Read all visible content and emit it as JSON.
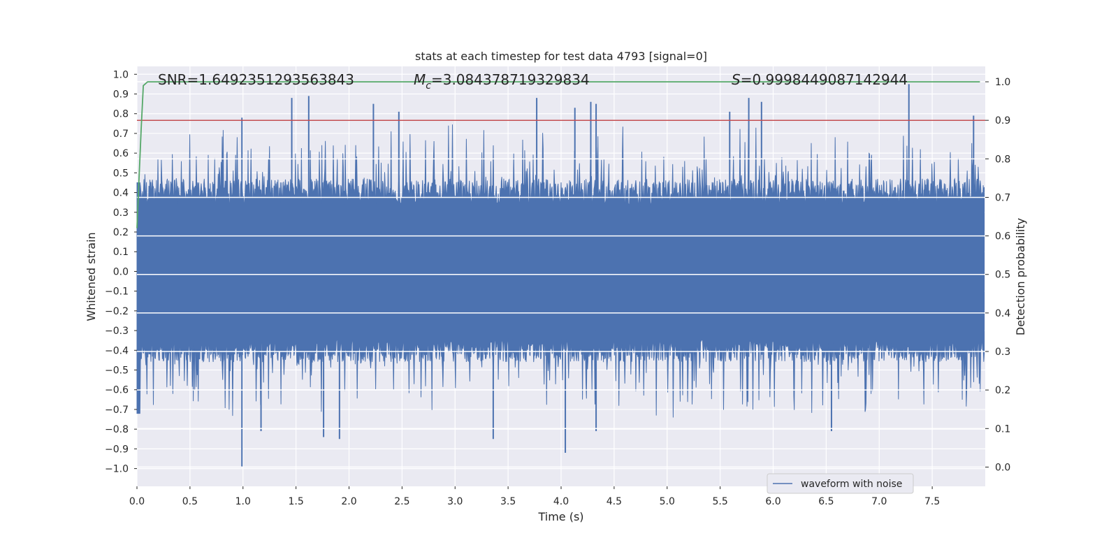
{
  "chart_data": {
    "type": "line",
    "title": "stats at each timestep for test data 4793 [signal=0]",
    "xlabel": "Time (s)",
    "ylabel_left": "Whitened strain",
    "ylabel_right": "Detection probability",
    "xlim": [
      0.0,
      8.0
    ],
    "ylim_left": [
      -1.09,
      1.04
    ],
    "ylim_right": [
      -0.05,
      1.04
    ],
    "x_ticks": [
      "0.0",
      "0.5",
      "1.0",
      "1.5",
      "2.0",
      "2.5",
      "3.0",
      "3.5",
      "4.0",
      "4.5",
      "5.0",
      "5.5",
      "6.0",
      "6.5",
      "7.0",
      "7.5"
    ],
    "y_left_ticks": [
      "1.0",
      "0.9",
      "0.8",
      "0.7",
      "0.6",
      "0.5",
      "0.4",
      "0.3",
      "0.2",
      "0.1",
      "0.0",
      "−0.1",
      "−0.2",
      "−0.3",
      "−0.4",
      "−0.5",
      "−0.6",
      "−0.7",
      "−0.8",
      "−0.9",
      "−1.0"
    ],
    "y_right_ticks": [
      "1.0",
      "0.9",
      "0.8",
      "0.7",
      "0.6",
      "0.5",
      "0.4",
      "0.3",
      "0.2",
      "0.1",
      "0.0"
    ],
    "stats": {
      "snr": "SNR=1.6492351293563843",
      "mc_prefix": "M",
      "mc_sub": "c",
      "mc_value": "=3.084378719329834",
      "s_prefix": "S",
      "s_value": "=0.9998449087142944"
    },
    "threshold": {
      "axis": "right",
      "value": 0.9,
      "color": "#c44e52"
    },
    "series": [
      {
        "name": "waveform with noise",
        "axis": "left",
        "color": "#4c72b0",
        "envelope_typical": 0.45,
        "peaks_high": [
          [
            0.99,
            0.78
          ],
          [
            1.46,
            0.88
          ],
          [
            1.62,
            0.89
          ],
          [
            2.23,
            0.85
          ],
          [
            2.47,
            0.81
          ],
          [
            3.77,
            0.88
          ],
          [
            4.13,
            0.83
          ],
          [
            4.28,
            0.86
          ],
          [
            4.33,
            0.85
          ],
          [
            5.59,
            0.81
          ],
          [
            5.77,
            0.88
          ],
          [
            5.89,
            0.86
          ],
          [
            7.28,
            0.95
          ],
          [
            7.89,
            0.79
          ]
        ],
        "peaks_low": [
          [
            0.99,
            -0.99
          ],
          [
            1.17,
            -0.81
          ],
          [
            1.76,
            -0.84
          ],
          [
            1.91,
            -0.85
          ],
          [
            3.36,
            -0.85
          ],
          [
            4.04,
            -0.92
          ],
          [
            4.33,
            -0.81
          ],
          [
            6.55,
            -0.81
          ]
        ]
      },
      {
        "name": "detection probability",
        "axis": "right",
        "color": "#55a868",
        "x": [
          0.0,
          0.02,
          0.04,
          0.06,
          0.1,
          0.15,
          7.95
        ],
        "values": [
          0.62,
          0.75,
          0.88,
          0.99,
          1.0,
          1.0,
          1.0
        ]
      }
    ],
    "legend": {
      "label": "waveform with noise",
      "position": "lower-right"
    }
  }
}
